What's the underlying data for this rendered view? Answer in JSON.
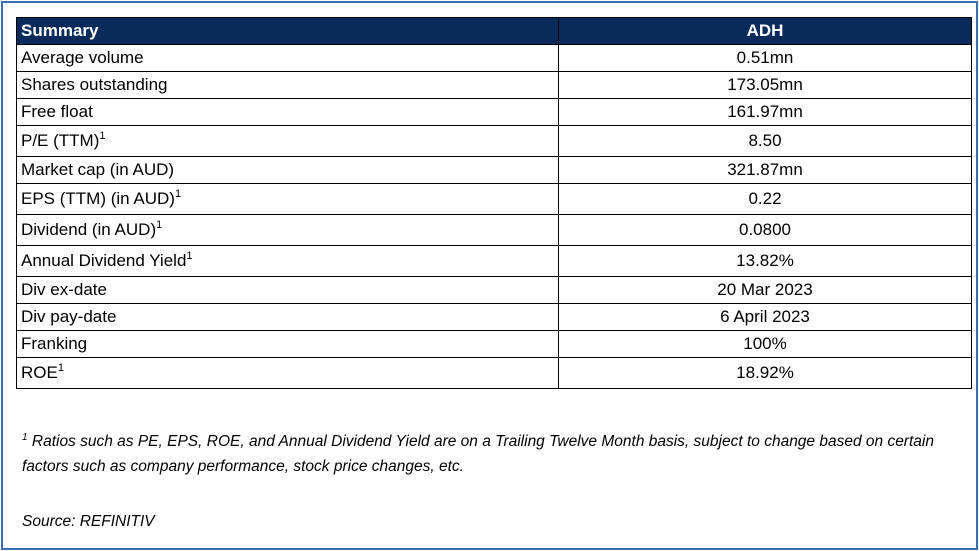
{
  "table": {
    "header": {
      "label": "Summary",
      "value": "ADH"
    },
    "rows": [
      {
        "label": "Average volume",
        "sup": "",
        "value": "0.51mn"
      },
      {
        "label": "Shares outstanding",
        "sup": "",
        "value": "173.05mn"
      },
      {
        "label": "Free float",
        "sup": "",
        "value": "161.97mn"
      },
      {
        "label": "P/E (TTM)",
        "sup": "1",
        "value": "8.50"
      },
      {
        "label": "Market cap (in AUD)",
        "sup": "",
        "value": "321.87mn"
      },
      {
        "label": "EPS (TTM) (in AUD)",
        "sup": "1",
        "value": "0.22"
      },
      {
        "label": "Dividend (in AUD)",
        "sup": "1",
        "value": "0.0800"
      },
      {
        "label": "Annual Dividend Yield",
        "sup": "1",
        "value": "13.82%"
      },
      {
        "label": "Div ex-date",
        "sup": "",
        "value": "20 Mar 2023"
      },
      {
        "label": "Div pay-date",
        "sup": "",
        "value": "6 April 2023"
      },
      {
        "label": "Franking",
        "sup": "",
        "value": "100%"
      },
      {
        "label": "ROE",
        "sup": "1",
        "value": "18.92%"
      }
    ]
  },
  "footnote": {
    "marker": "1",
    "text": "Ratios such as PE, EPS, ROE, and Annual Dividend Yield are on a Trailing Twelve Month basis, subject to change based on certain factors such as company performance, stock price changes, etc."
  },
  "source": "Source: REFINITIV",
  "colors": {
    "header_bg": "#0b2a5c",
    "frame_border": "#3b6fb6"
  }
}
